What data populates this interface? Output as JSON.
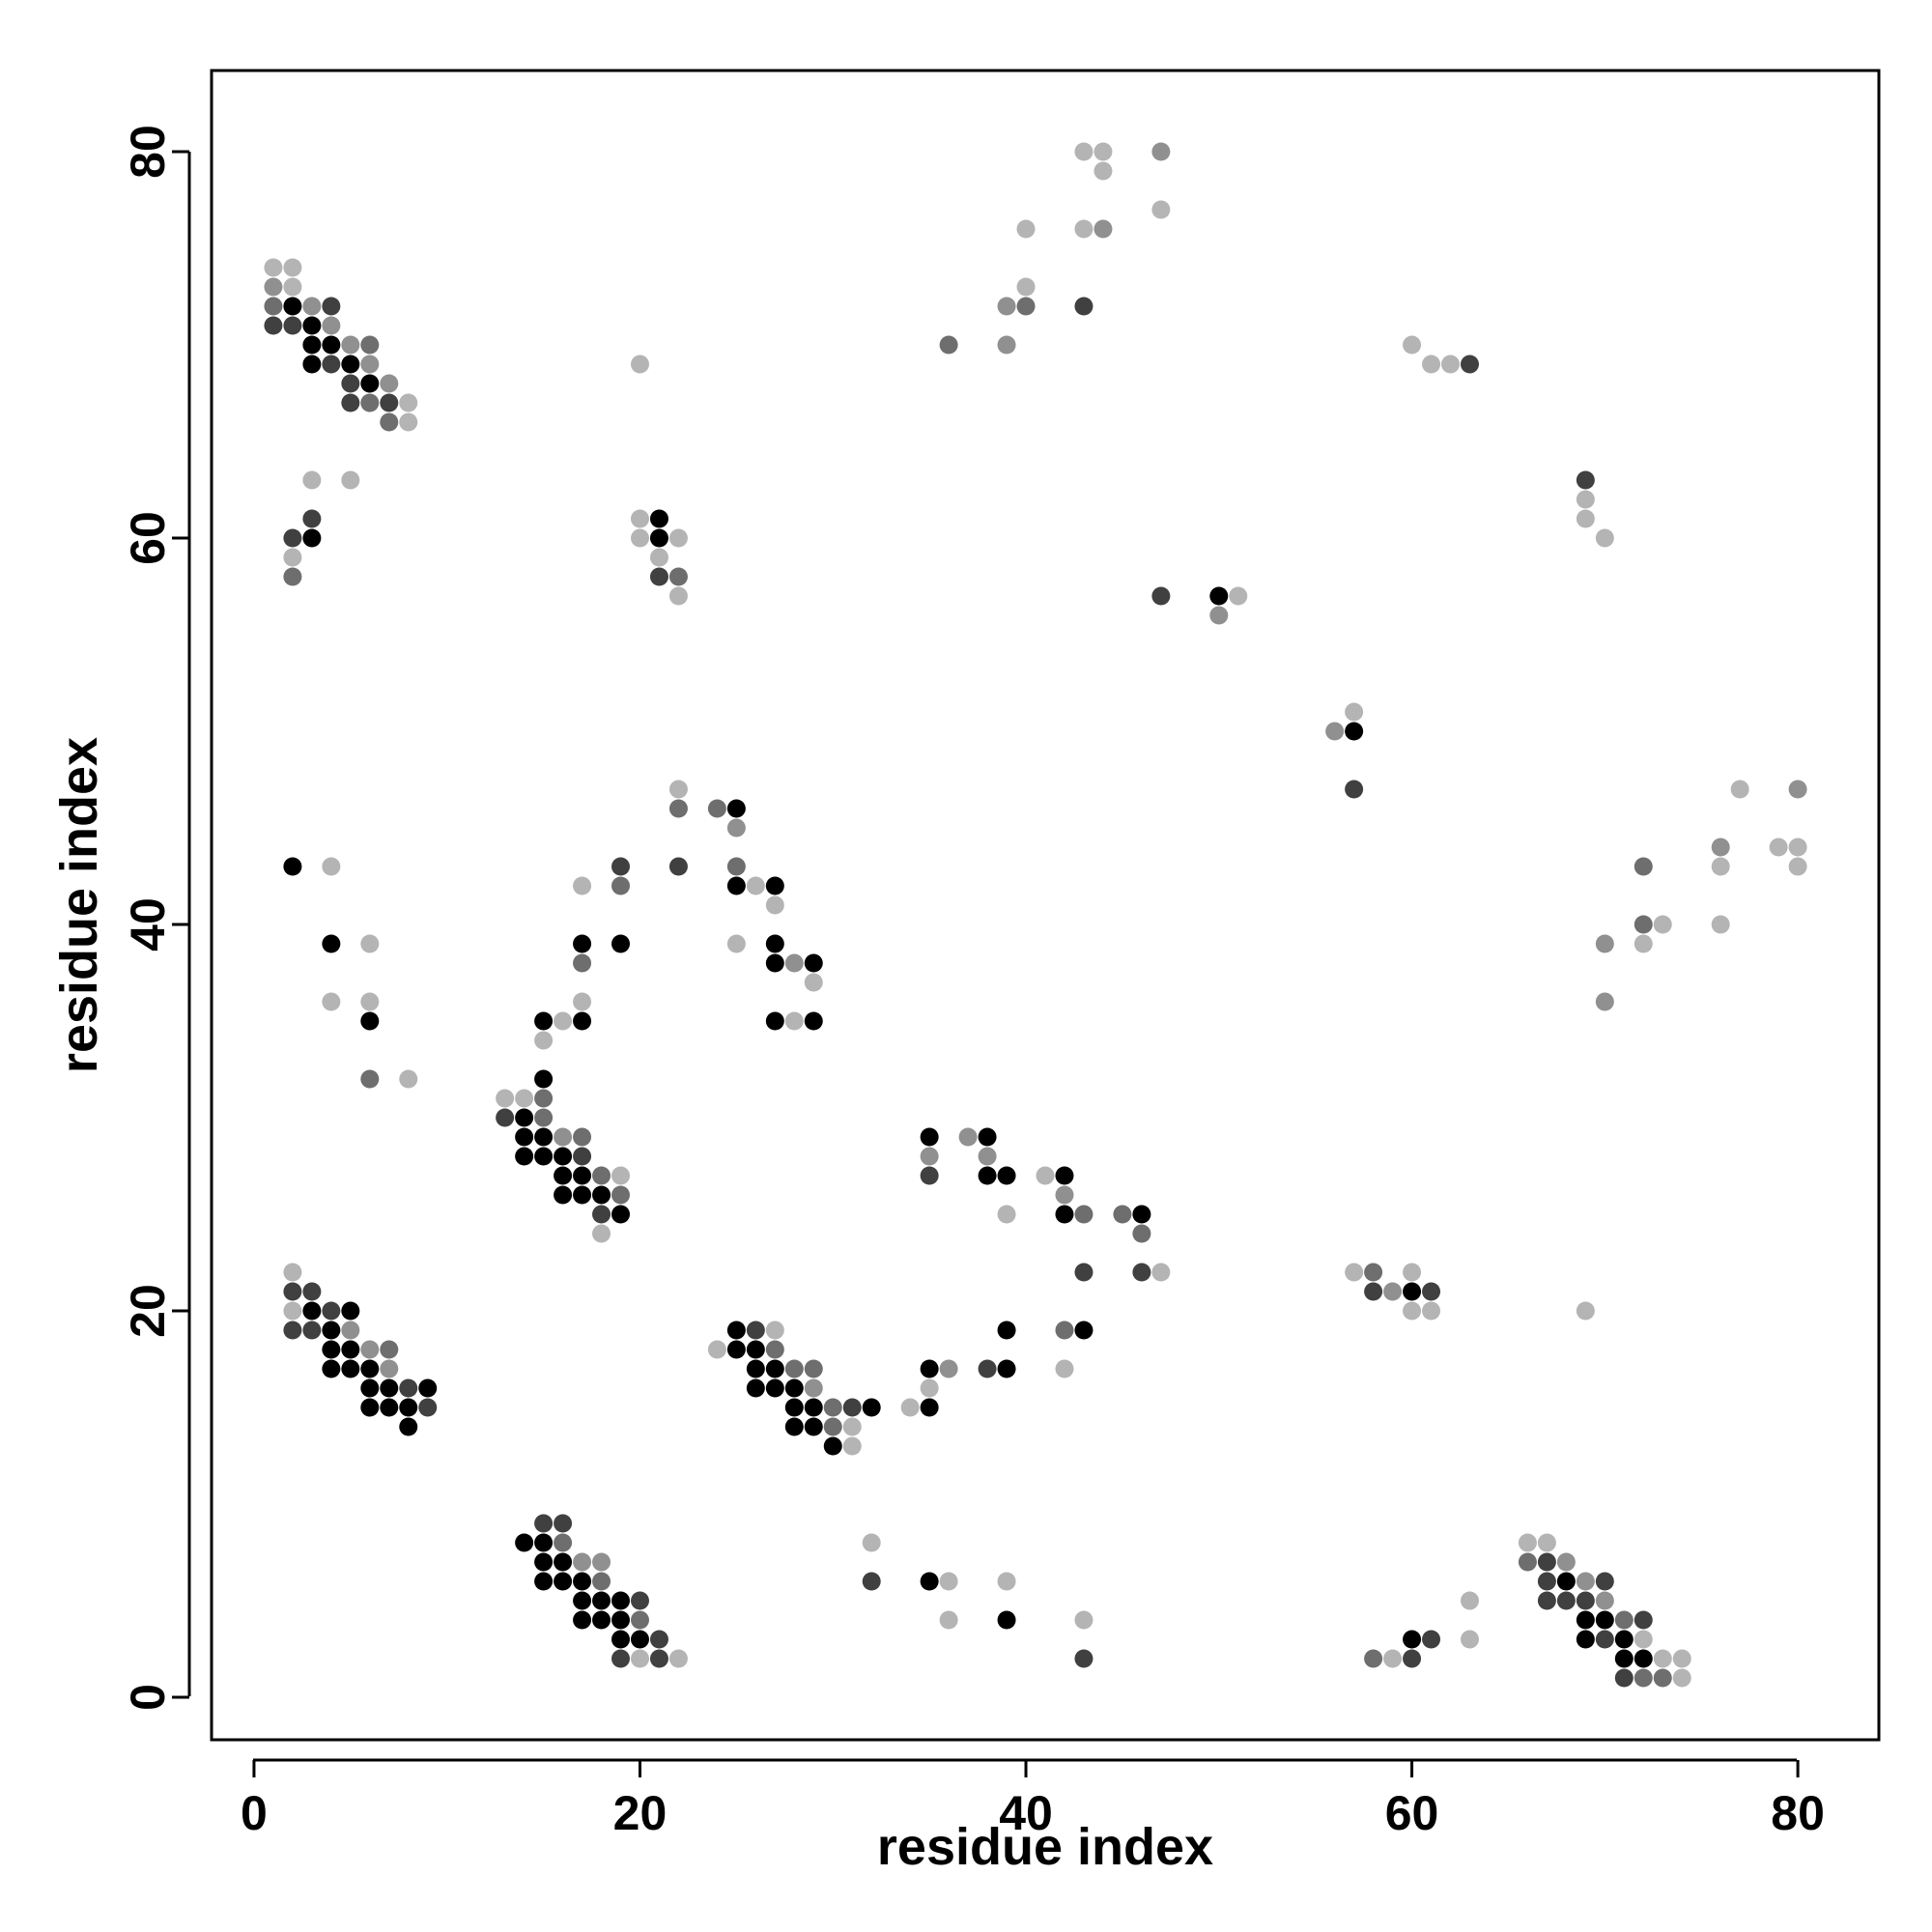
{
  "chart_data": {
    "type": "scatter",
    "title": "",
    "xlabel": "residue index",
    "ylabel": "residue index",
    "xlim": [
      -2.2,
      84.2
    ],
    "ylim": [
      -2.2,
      84.2
    ],
    "x_ticks": [
      0,
      20,
      40,
      60,
      80
    ],
    "y_ticks": [
      0,
      20,
      40,
      60,
      80
    ],
    "x_tick_labels": [
      "0",
      "20",
      "40",
      "60",
      "80"
    ],
    "y_tick_labels": [
      "0",
      "20",
      "40",
      "60",
      "80"
    ],
    "grid": false,
    "legend": "none",
    "point_shade_scale": [
      "#000000",
      "#404040",
      "#6e6e6e",
      "#909090",
      "#b4b4b4"
    ],
    "points": [
      [
        1,
        74,
        4
      ],
      [
        2,
        74,
        4
      ],
      [
        1,
        73,
        3
      ],
      [
        2,
        73,
        4
      ],
      [
        1,
        72,
        2
      ],
      [
        2,
        72,
        0
      ],
      [
        3,
        72,
        3
      ],
      [
        4,
        72,
        1
      ],
      [
        1,
        71,
        1
      ],
      [
        2,
        71,
        1
      ],
      [
        3,
        71,
        0
      ],
      [
        4,
        71,
        3
      ],
      [
        3,
        70,
        0
      ],
      [
        4,
        70,
        0
      ],
      [
        5,
        70,
        3
      ],
      [
        6,
        70,
        2
      ],
      [
        3,
        69,
        0
      ],
      [
        4,
        69,
        1
      ],
      [
        5,
        69,
        0
      ],
      [
        6,
        69,
        3
      ],
      [
        5,
        68,
        1
      ],
      [
        6,
        68,
        0
      ],
      [
        7,
        68,
        3
      ],
      [
        5,
        67,
        1
      ],
      [
        6,
        67,
        2
      ],
      [
        7,
        67,
        1
      ],
      [
        8,
        67,
        4
      ],
      [
        7,
        66,
        2
      ],
      [
        8,
        66,
        4
      ],
      [
        3,
        63,
        4
      ],
      [
        5,
        63,
        4
      ],
      [
        3,
        61,
        1
      ],
      [
        2,
        60,
        1
      ],
      [
        3,
        60,
        0
      ],
      [
        2,
        59,
        4
      ],
      [
        2,
        58,
        2
      ],
      [
        20,
        69,
        4
      ],
      [
        20,
        61,
        4
      ],
      [
        21,
        61,
        0
      ],
      [
        20,
        60,
        4
      ],
      [
        21,
        60,
        0
      ],
      [
        22,
        60,
        4
      ],
      [
        21,
        59,
        4
      ],
      [
        21,
        58,
        1
      ],
      [
        22,
        58,
        2
      ],
      [
        22,
        57,
        4
      ],
      [
        2,
        43,
        0
      ],
      [
        4,
        43,
        4
      ],
      [
        4,
        39,
        0
      ],
      [
        6,
        39,
        4
      ],
      [
        4,
        36,
        4
      ],
      [
        6,
        36,
        4
      ],
      [
        6,
        35,
        0
      ],
      [
        6,
        32,
        2
      ],
      [
        8,
        32,
        4
      ],
      [
        22,
        47,
        4
      ],
      [
        22,
        46,
        2
      ],
      [
        24,
        46,
        2
      ],
      [
        25,
        46,
        0
      ],
      [
        25,
        45,
        3
      ],
      [
        22,
        43,
        1
      ],
      [
        19,
        43,
        1
      ],
      [
        25,
        43,
        2
      ],
      [
        19,
        42,
        2
      ],
      [
        17,
        42,
        4
      ],
      [
        25,
        42,
        0
      ],
      [
        26,
        42,
        4
      ],
      [
        27,
        42,
        0
      ],
      [
        27,
        41,
        4
      ],
      [
        19,
        39,
        0
      ],
      [
        17,
        39,
        0
      ],
      [
        25,
        39,
        4
      ],
      [
        27,
        39,
        0
      ],
      [
        17,
        38,
        2
      ],
      [
        27,
        38,
        0
      ],
      [
        28,
        38,
        3
      ],
      [
        29,
        38,
        0
      ],
      [
        29,
        37,
        4
      ],
      [
        17,
        36,
        4
      ],
      [
        16,
        35,
        4
      ],
      [
        15,
        35,
        0
      ],
      [
        17,
        35,
        0
      ],
      [
        15,
        34,
        4
      ],
      [
        27,
        35,
        0
      ],
      [
        28,
        35,
        4
      ],
      [
        29,
        35,
        0
      ],
      [
        15,
        32,
        0
      ],
      [
        13,
        31,
        4
      ],
      [
        14,
        31,
        4
      ],
      [
        15,
        31,
        2
      ],
      [
        13,
        30,
        1
      ],
      [
        14,
        30,
        0
      ],
      [
        15,
        30,
        2
      ],
      [
        14,
        29,
        0
      ],
      [
        15,
        29,
        0
      ],
      [
        16,
        29,
        3
      ],
      [
        17,
        29,
        2
      ],
      [
        14,
        28,
        0
      ],
      [
        15,
        28,
        0
      ],
      [
        16,
        28,
        0
      ],
      [
        17,
        28,
        1
      ],
      [
        16,
        27,
        0
      ],
      [
        17,
        27,
        0
      ],
      [
        18,
        27,
        2
      ],
      [
        19,
        27,
        4
      ],
      [
        16,
        26,
        0
      ],
      [
        17,
        26,
        0
      ],
      [
        18,
        26,
        0
      ],
      [
        19,
        26,
        2
      ],
      [
        18,
        25,
        1
      ],
      [
        19,
        25,
        0
      ],
      [
        18,
        24,
        4
      ],
      [
        2,
        22,
        4
      ],
      [
        2,
        21,
        1
      ],
      [
        3,
        21,
        1
      ],
      [
        2,
        20,
        4
      ],
      [
        3,
        20,
        0
      ],
      [
        4,
        20,
        1
      ],
      [
        5,
        20,
        0
      ],
      [
        2,
        19,
        1
      ],
      [
        3,
        19,
        1
      ],
      [
        4,
        19,
        0
      ],
      [
        5,
        19,
        3
      ],
      [
        4,
        18,
        0
      ],
      [
        5,
        18,
        0
      ],
      [
        6,
        18,
        3
      ],
      [
        7,
        18,
        2
      ],
      [
        4,
        17,
        0
      ],
      [
        5,
        17,
        0
      ],
      [
        6,
        17,
        0
      ],
      [
        7,
        17,
        3
      ],
      [
        6,
        16,
        0
      ],
      [
        7,
        16,
        0
      ],
      [
        8,
        16,
        1
      ],
      [
        9,
        16,
        0
      ],
      [
        6,
        15,
        0
      ],
      [
        7,
        15,
        0
      ],
      [
        8,
        15,
        0
      ],
      [
        9,
        15,
        1
      ],
      [
        8,
        14,
        0
      ],
      [
        25,
        19,
        0
      ],
      [
        26,
        19,
        1
      ],
      [
        27,
        19,
        4
      ],
      [
        24,
        18,
        4
      ],
      [
        25,
        18,
        0
      ],
      [
        26,
        18,
        0
      ],
      [
        27,
        18,
        2
      ],
      [
        26,
        17,
        0
      ],
      [
        27,
        17,
        0
      ],
      [
        28,
        17,
        2
      ],
      [
        29,
        17,
        2
      ],
      [
        26,
        16,
        0
      ],
      [
        27,
        16,
        0
      ],
      [
        28,
        16,
        0
      ],
      [
        29,
        16,
        3
      ],
      [
        28,
        15,
        0
      ],
      [
        29,
        15,
        0
      ],
      [
        30,
        15,
        2
      ],
      [
        31,
        15,
        1
      ],
      [
        32,
        15,
        0
      ],
      [
        28,
        14,
        0
      ],
      [
        29,
        14,
        0
      ],
      [
        30,
        14,
        2
      ],
      [
        31,
        14,
        4
      ],
      [
        30,
        13,
        0
      ],
      [
        31,
        13,
        4
      ],
      [
        35,
        29,
        0
      ],
      [
        37,
        29,
        3
      ],
      [
        38,
        29,
        0
      ],
      [
        35,
        28,
        3
      ],
      [
        38,
        28,
        3
      ],
      [
        35,
        27,
        1
      ],
      [
        38,
        27,
        0
      ],
      [
        39,
        27,
        0
      ],
      [
        41,
        27,
        4
      ],
      [
        42,
        27,
        0
      ],
      [
        39,
        25,
        4
      ],
      [
        42,
        26,
        3
      ],
      [
        42,
        25,
        0
      ],
      [
        43,
        25,
        2
      ],
      [
        45,
        25,
        2
      ],
      [
        46,
        25,
        0
      ],
      [
        46,
        24,
        2
      ],
      [
        43,
        22,
        1
      ],
      [
        46,
        22,
        1
      ],
      [
        47,
        22,
        4
      ],
      [
        39,
        19,
        0
      ],
      [
        42,
        19,
        2
      ],
      [
        43,
        19,
        0
      ],
      [
        35,
        17,
        0
      ],
      [
        36,
        17,
        3
      ],
      [
        38,
        17,
        1
      ],
      [
        39,
        17,
        0
      ],
      [
        42,
        17,
        4
      ],
      [
        35,
        16,
        4
      ],
      [
        34,
        15,
        4
      ],
      [
        35,
        15,
        0
      ],
      [
        32,
        8,
        4
      ],
      [
        32,
        6,
        1
      ],
      [
        35,
        6,
        0
      ],
      [
        36,
        6,
        4
      ],
      [
        39,
        6,
        4
      ],
      [
        36,
        4,
        4
      ],
      [
        39,
        4,
        0
      ],
      [
        43,
        4,
        4
      ],
      [
        43,
        2,
        1
      ],
      [
        15,
        9,
        1
      ],
      [
        16,
        9,
        1
      ],
      [
        14,
        8,
        0
      ],
      [
        15,
        8,
        0
      ],
      [
        16,
        8,
        2
      ],
      [
        15,
        7,
        0
      ],
      [
        16,
        7,
        0
      ],
      [
        17,
        7,
        3
      ],
      [
        18,
        7,
        3
      ],
      [
        15,
        6,
        0
      ],
      [
        16,
        6,
        0
      ],
      [
        17,
        6,
        0
      ],
      [
        18,
        6,
        2
      ],
      [
        17,
        5,
        0
      ],
      [
        18,
        5,
        0
      ],
      [
        19,
        5,
        0
      ],
      [
        20,
        5,
        1
      ],
      [
        17,
        4,
        0
      ],
      [
        18,
        4,
        0
      ],
      [
        19,
        4,
        0
      ],
      [
        20,
        4,
        2
      ],
      [
        19,
        3,
        0
      ],
      [
        20,
        3,
        0
      ],
      [
        21,
        3,
        1
      ],
      [
        19,
        2,
        1
      ],
      [
        20,
        2,
        4
      ],
      [
        21,
        2,
        1
      ],
      [
        22,
        2,
        4
      ],
      [
        36,
        70,
        2
      ],
      [
        39,
        70,
        3
      ],
      [
        39,
        72,
        3
      ],
      [
        40,
        72,
        2
      ],
      [
        40,
        73,
        4
      ],
      [
        40,
        76,
        4
      ],
      [
        43,
        72,
        1
      ],
      [
        43,
        76,
        4
      ],
      [
        44,
        76,
        3
      ],
      [
        43,
        80,
        4
      ],
      [
        44,
        80,
        4
      ],
      [
        44,
        79,
        4
      ],
      [
        47,
        80,
        3
      ],
      [
        47,
        77,
        4
      ],
      [
        47,
        57,
        1
      ],
      [
        50,
        57,
        0
      ],
      [
        51,
        57,
        4
      ],
      [
        50,
        56,
        3
      ],
      [
        56,
        50,
        3
      ],
      [
        57,
        51,
        4
      ],
      [
        57,
        50,
        0
      ],
      [
        57,
        47,
        1
      ],
      [
        60,
        70,
        4
      ],
      [
        61,
        69,
        4
      ],
      [
        62,
        69,
        4
      ],
      [
        63,
        69,
        1
      ],
      [
        69,
        63,
        1
      ],
      [
        69,
        62,
        4
      ],
      [
        69,
        61,
        4
      ],
      [
        70,
        60,
        4
      ],
      [
        57,
        22,
        4
      ],
      [
        58,
        22,
        2
      ],
      [
        58,
        21,
        1
      ],
      [
        59,
        21,
        3
      ],
      [
        60,
        22,
        4
      ],
      [
        60,
        21,
        0
      ],
      [
        61,
        21,
        1
      ],
      [
        60,
        20,
        4
      ],
      [
        61,
        20,
        4
      ],
      [
        69,
        20,
        4
      ],
      [
        80,
        47,
        3
      ],
      [
        77,
        47,
        4
      ],
      [
        76,
        44,
        3
      ],
      [
        76,
        43,
        4
      ],
      [
        79,
        44,
        4
      ],
      [
        80,
        44,
        4
      ],
      [
        80,
        43,
        4
      ],
      [
        72,
        43,
        2
      ],
      [
        72,
        40,
        2
      ],
      [
        73,
        40,
        4
      ],
      [
        76,
        40,
        4
      ],
      [
        70,
        39,
        3
      ],
      [
        72,
        39,
        4
      ],
      [
        70,
        36,
        3
      ],
      [
        66,
        8,
        4
      ],
      [
        67,
        8,
        4
      ],
      [
        66,
        7,
        2
      ],
      [
        67,
        7,
        1
      ],
      [
        68,
        7,
        3
      ],
      [
        67,
        6,
        1
      ],
      [
        68,
        6,
        0
      ],
      [
        69,
        6,
        3
      ],
      [
        70,
        6,
        1
      ],
      [
        67,
        5,
        1
      ],
      [
        68,
        5,
        1
      ],
      [
        69,
        5,
        1
      ],
      [
        70,
        5,
        3
      ],
      [
        69,
        4,
        0
      ],
      [
        70,
        4,
        0
      ],
      [
        71,
        4,
        2
      ],
      [
        72,
        4,
        1
      ],
      [
        69,
        3,
        0
      ],
      [
        70,
        3,
        1
      ],
      [
        71,
        3,
        0
      ],
      [
        72,
        3,
        4
      ],
      [
        71,
        2,
        0
      ],
      [
        72,
        2,
        0
      ],
      [
        73,
        2,
        4
      ],
      [
        74,
        2,
        4
      ],
      [
        71,
        1,
        1
      ],
      [
        72,
        1,
        2
      ],
      [
        73,
        1,
        2
      ],
      [
        74,
        1,
        4
      ],
      [
        63,
        5,
        4
      ],
      [
        63,
        3,
        4
      ],
      [
        60,
        3,
        0
      ],
      [
        61,
        3,
        1
      ],
      [
        58,
        2,
        2
      ],
      [
        59,
        2,
        4
      ],
      [
        60,
        2,
        1
      ]
    ]
  }
}
